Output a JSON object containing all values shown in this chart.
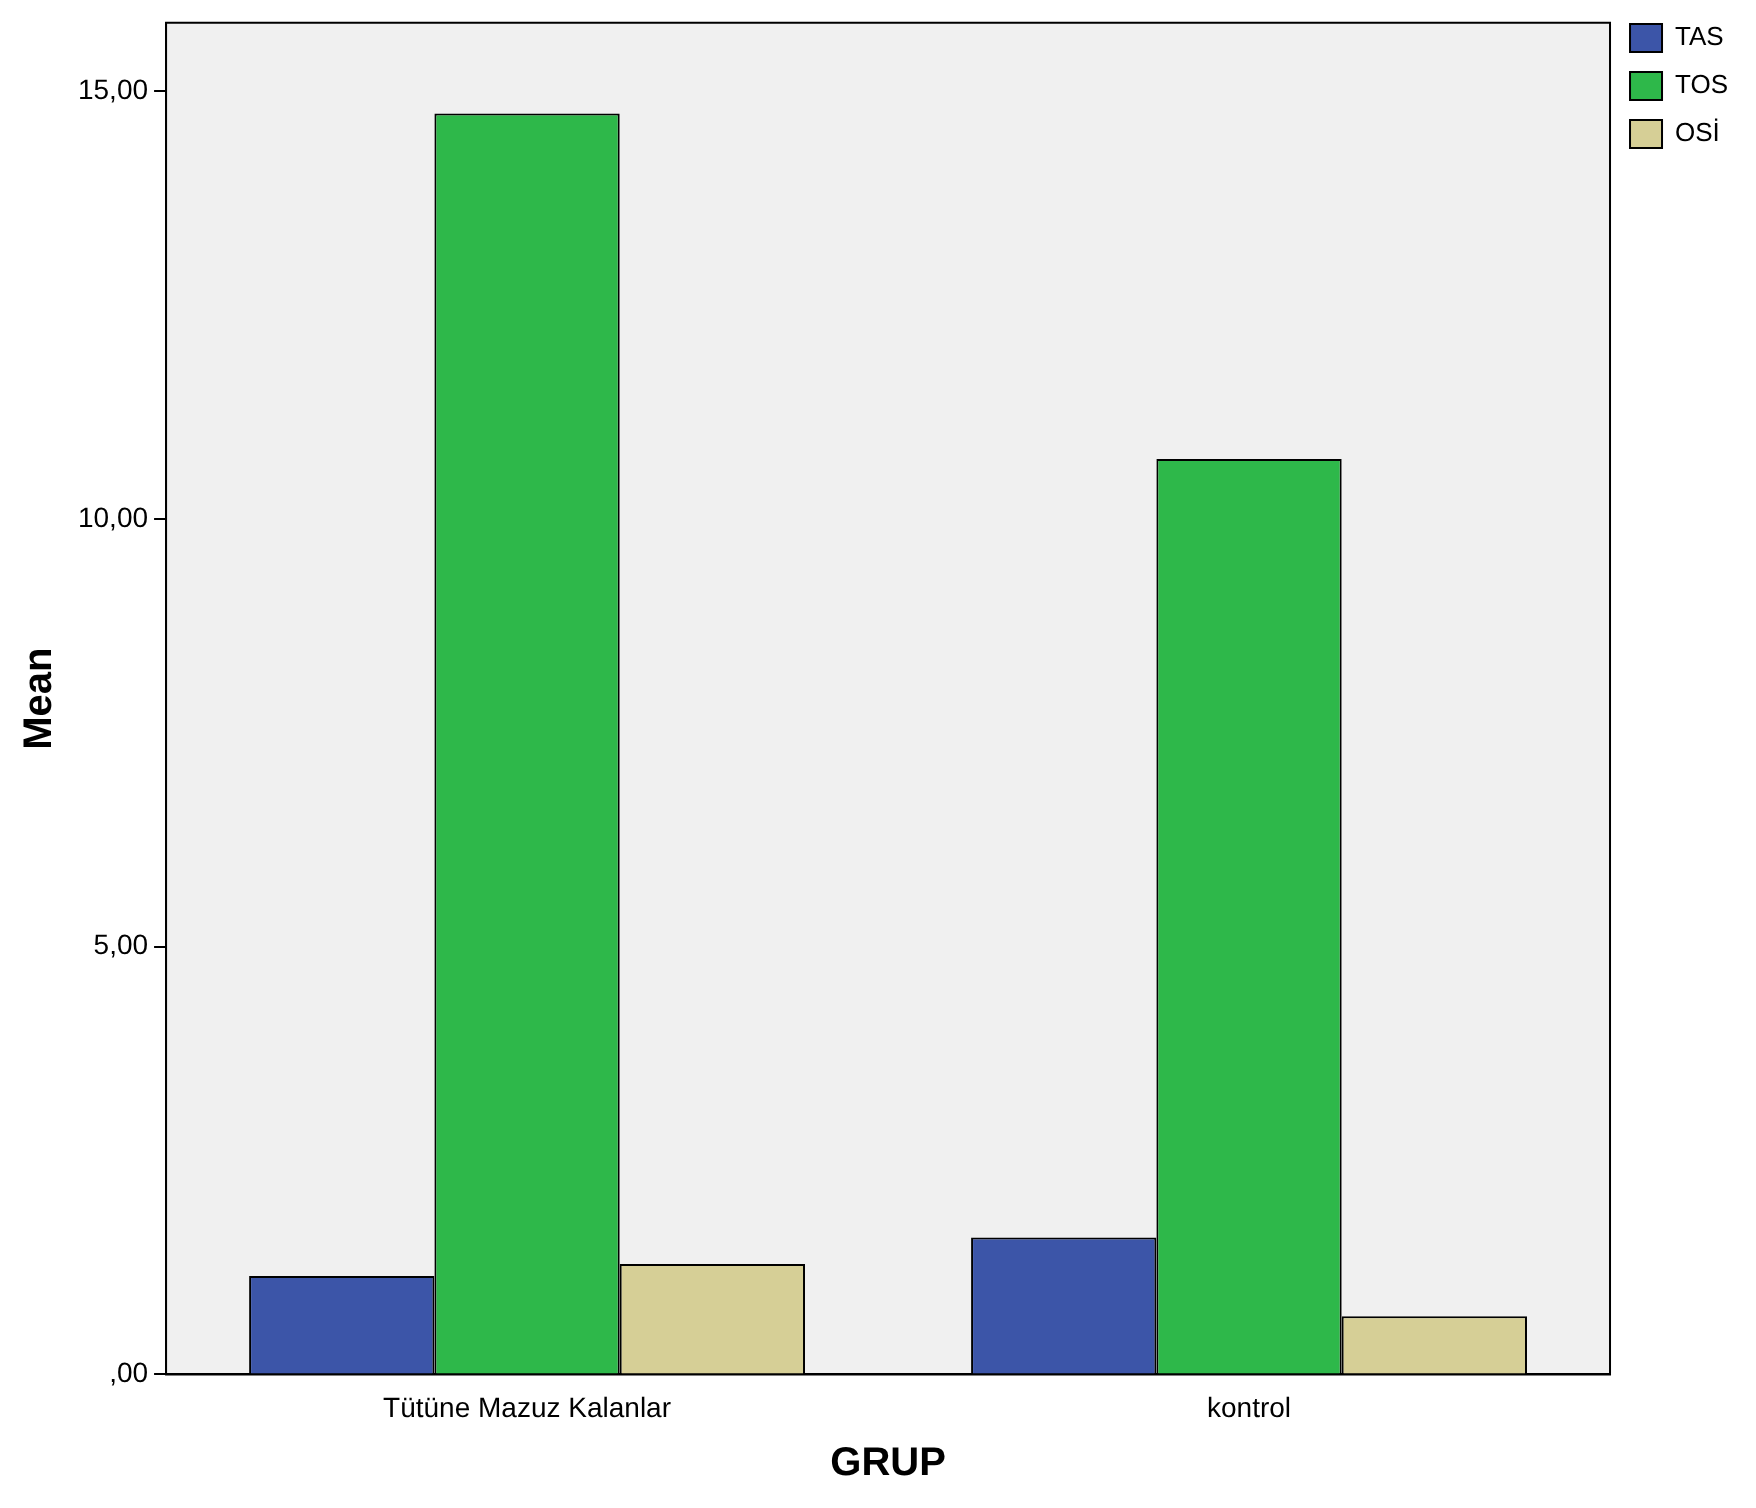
{
  "chart_data": {
    "type": "bar",
    "xlabel": "GRUP",
    "ylabel": "Mean",
    "categories": [
      "Tütüne Mazuz Kalanlar",
      "kontrol"
    ],
    "series": [
      {
        "name": "TAS",
        "color": "#3c55a8",
        "values": [
          1.15,
          1.6
        ]
      },
      {
        "name": "TOS",
        "color": "#2eb84a",
        "values": [
          14.74,
          10.7
        ]
      },
      {
        "name": "OSİ",
        "color": "#d6cf96",
        "values": [
          1.29,
          0.68
        ]
      }
    ],
    "ylim": [
      0,
      15.8
    ],
    "yticks": [
      {
        "value": 0,
        "label": ",00"
      },
      {
        "value": 5,
        "label": "5,00"
      },
      {
        "value": 10,
        "label": "10,00"
      },
      {
        "value": 15,
        "label": "15,00"
      }
    ],
    "grid": false,
    "legend": "top right"
  }
}
